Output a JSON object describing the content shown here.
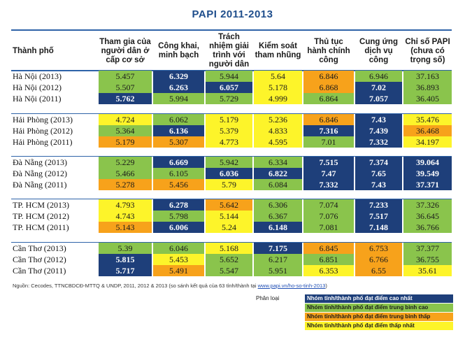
{
  "title": "PAPI 2011-2013",
  "source": {
    "text": "Nguồn: Cecodes, TTNCBDCĐ-MTTQ & UNDP, 2011, 2012 & 2013 (so sánh kết quả của 63 tỉnh/thành tại ",
    "link": "www.papi.vn/ho-so-tinh-2013",
    "close": ")"
  },
  "legend": {
    "title": "Phân loại",
    "items": [
      {
        "label": "Nhóm tỉnh/thành phố đạt điểm cao nhất",
        "color": "#1e3f7a",
        "text_color": "#ffffff"
      },
      {
        "label": "Nhóm tỉnh/thành phố đạt điểm trung bình cao",
        "color": "#8ac44c",
        "text_color": "#1a1a1a"
      },
      {
        "label": "Nhóm tỉnh/thành phố đạt điểm trung bình thấp",
        "color": "#f7a21b",
        "text_color": "#1a1a1a"
      },
      {
        "label": "Nhóm tỉnh/thành phố đạt điểm thấp nhất",
        "color": "#fdf42a",
        "text_color": "#1a1a1a"
      }
    ]
  },
  "chart_data": {
    "type": "table",
    "title": "PAPI 2011-2013",
    "row_header": "Thành phố",
    "columns": [
      "Tham gia của người dân ở cấp cơ sở",
      "Công khai, minh bạch",
      "Trách nhiệm giải trình với người dân",
      "Kiểm soát tham nhũng",
      "Thủ tục hành chính công",
      "Cung ứng dịch vụ công",
      "Chỉ số PAPI (chưa có trọng số)"
    ],
    "groups": [
      {
        "rows": [
          {
            "name": "Hà Nội (2013)",
            "values": [
              "5.457",
              "6.329",
              "5.944",
              "5.64",
              "6.846",
              "6.946",
              "37.163"
            ],
            "classes": [
              "mh",
              "high",
              "mh",
              "low",
              "ml",
              "mh",
              "mh"
            ]
          },
          {
            "name": "Hà Nội (2012)",
            "values": [
              "5.507",
              "6.263",
              "6.057",
              "5.178",
              "6.868",
              "7.02",
              "36.893"
            ],
            "classes": [
              "mh",
              "high",
              "high",
              "low",
              "ml",
              "high",
              "mh"
            ]
          },
          {
            "name": "Hà Nội (2011)",
            "values": [
              "5.762",
              "5.994",
              "5.729",
              "4.999",
              "6.864",
              "7.057",
              "36.405"
            ],
            "classes": [
              "high",
              "mh",
              "mh",
              "low",
              "mh",
              "high",
              "mh"
            ]
          }
        ]
      },
      {
        "rows": [
          {
            "name": "Hải Phòng (2013)",
            "values": [
              "4.724",
              "6.062",
              "5.179",
              "5.236",
              "6.846",
              "7.43",
              "35.476"
            ],
            "classes": [
              "low",
              "mh",
              "low",
              "low",
              "ml",
              "high",
              "low"
            ]
          },
          {
            "name": "Hải Phòng (2012)",
            "values": [
              "5.364",
              "6.136",
              "5.379",
              "4.833",
              "7.316",
              "7.439",
              "36.468"
            ],
            "classes": [
              "mh",
              "high",
              "low",
              "low",
              "high",
              "high",
              "ml"
            ]
          },
          {
            "name": "Hải Phòng (2011)",
            "values": [
              "5.179",
              "5.307",
              "4.773",
              "4.595",
              "7.01",
              "7.332",
              "34.197"
            ],
            "classes": [
              "ml",
              "ml",
              "low",
              "low",
              "mh",
              "high",
              "low"
            ]
          }
        ]
      },
      {
        "rows": [
          {
            "name": "Đà Nẵng (2013)",
            "values": [
              "5.229",
              "6.669",
              "5.942",
              "6.334",
              "7.515",
              "7.374",
              "39.064"
            ],
            "classes": [
              "mh",
              "high",
              "mh",
              "mh",
              "high",
              "high",
              "high"
            ]
          },
          {
            "name": "Đà Nẵng (2012)",
            "values": [
              "5.466",
              "6.105",
              "6.036",
              "6.822",
              "7.47",
              "7.65",
              "39.549"
            ],
            "classes": [
              "mh",
              "mh",
              "high",
              "high",
              "high",
              "high",
              "high"
            ]
          },
          {
            "name": "Đà Nẵng (2011)",
            "values": [
              "5.278",
              "5.456",
              "5.79",
              "6.084",
              "7.332",
              "7.43",
              "37.371"
            ],
            "classes": [
              "ml",
              "ml",
              "low",
              "mh",
              "high",
              "high",
              "high"
            ]
          }
        ]
      },
      {
        "rows": [
          {
            "name": "TP. HCM (2013)",
            "values": [
              "4.793",
              "6.278",
              "5.642",
              "6.306",
              "7.074",
              "7.233",
              "37.326"
            ],
            "classes": [
              "low",
              "high",
              "ml",
              "mh",
              "mh",
              "high",
              "mh"
            ]
          },
          {
            "name": "TP. HCM (2012)",
            "values": [
              "4.743",
              "5.798",
              "5.144",
              "6.367",
              "7.076",
              "7.517",
              "36.645"
            ],
            "classes": [
              "low",
              "mh",
              "low",
              "mh",
              "mh",
              "high",
              "mh"
            ]
          },
          {
            "name": "TP. HCM (2011)",
            "values": [
              "5.143",
              "6.006",
              "5.24",
              "6.148",
              "7.081",
              "7.148",
              "36.766"
            ],
            "classes": [
              "ml",
              "high",
              "low",
              "high",
              "mh",
              "high",
              "mh"
            ]
          }
        ]
      },
      {
        "rows": [
          {
            "name": "Cần Thơ (2013)",
            "values": [
              "5.39",
              "6.046",
              "5.168",
              "7.175",
              "6.845",
              "6.753",
              "37.377"
            ],
            "classes": [
              "mh",
              "mh",
              "low",
              "high",
              "ml",
              "ml",
              "mh"
            ]
          },
          {
            "name": "Cần Thơ (2012)",
            "values": [
              "5.815",
              "5.453",
              "5.652",
              "6.217",
              "6.851",
              "6.766",
              "36.755"
            ],
            "classes": [
              "high",
              "low",
              "mh",
              "mh",
              "mh",
              "ml",
              "mh"
            ]
          },
          {
            "name": "Cần Thơ (2011)",
            "values": [
              "5.717",
              "5.491",
              "5.547",
              "5.951",
              "6.353",
              "6.55",
              "35.61"
            ],
            "classes": [
              "high",
              "ml",
              "mh",
              "mh",
              "low",
              "ml",
              "low"
            ]
          }
        ]
      }
    ]
  }
}
